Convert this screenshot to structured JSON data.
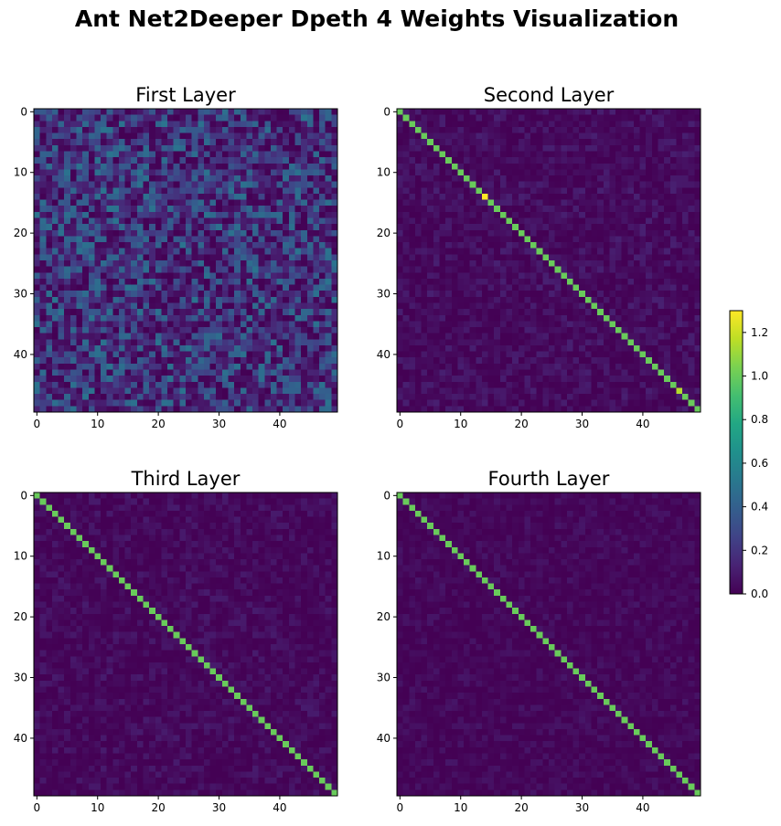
{
  "figure": {
    "title": "Ant Net2Deeper Dpeth 4 Weights Visualization"
  },
  "colorbar": {
    "colormap": "viridis",
    "range": [
      0.0,
      1.3
    ],
    "ticks": [
      0.0,
      0.2,
      0.4,
      0.6,
      0.8,
      1.0,
      1.2
    ],
    "tick_labels": [
      "0.0",
      "0.2",
      "0.4",
      "0.6",
      "0.8",
      "1.0",
      "1.2"
    ]
  },
  "chart_data": [
    {
      "type": "heatmap",
      "title": "First Layer",
      "shape": [
        50,
        50
      ],
      "x_ticks": [
        0,
        10,
        20,
        30,
        40
      ],
      "y_ticks": [
        0,
        10,
        20,
        30,
        40
      ],
      "x_tick_labels": [
        "0",
        "10",
        "20",
        "30",
        "40"
      ],
      "y_tick_labels": [
        "0",
        "10",
        "20",
        "30",
        "40"
      ],
      "diagonal_value": null,
      "off_diagonal_range": [
        0.0,
        0.75
      ],
      "off_diagonal_typical": 0.25,
      "highlight_cells": []
    },
    {
      "type": "heatmap",
      "title": "Second Layer",
      "shape": [
        50,
        50
      ],
      "x_ticks": [
        0,
        10,
        20,
        30,
        40
      ],
      "y_ticks": [
        0,
        10,
        20,
        30,
        40
      ],
      "x_tick_labels": [
        "0",
        "10",
        "20",
        "30",
        "40"
      ],
      "y_tick_labels": [
        "0",
        "10",
        "20",
        "30",
        "40"
      ],
      "diagonal_value": 1.0,
      "off_diagonal_range": [
        0.0,
        0.2
      ],
      "off_diagonal_typical": 0.06,
      "highlight_cells": [
        {
          "row": 14,
          "col": 14,
          "value": 1.3
        },
        {
          "row": 46,
          "col": 46,
          "value": 1.15
        }
      ]
    },
    {
      "type": "heatmap",
      "title": "Third Layer",
      "shape": [
        50,
        50
      ],
      "x_ticks": [
        0,
        10,
        20,
        30,
        40
      ],
      "y_ticks": [
        0,
        10,
        20,
        30,
        40
      ],
      "x_tick_labels": [
        "0",
        "10",
        "20",
        "30",
        "40"
      ],
      "y_tick_labels": [
        "0",
        "10",
        "20",
        "30",
        "40"
      ],
      "diagonal_value": 1.0,
      "off_diagonal_range": [
        0.0,
        0.15
      ],
      "off_diagonal_typical": 0.05,
      "highlight_cells": []
    },
    {
      "type": "heatmap",
      "title": "Fourth Layer",
      "shape": [
        50,
        50
      ],
      "x_ticks": [
        0,
        10,
        20,
        30,
        40
      ],
      "y_ticks": [
        0,
        10,
        20,
        30,
        40
      ],
      "x_tick_labels": [
        "0",
        "10",
        "20",
        "30",
        "40"
      ],
      "y_tick_labels": [
        "0",
        "10",
        "20",
        "30",
        "40"
      ],
      "diagonal_value": 1.0,
      "off_diagonal_range": [
        0.0,
        0.12
      ],
      "off_diagonal_typical": 0.04,
      "highlight_cells": []
    }
  ]
}
